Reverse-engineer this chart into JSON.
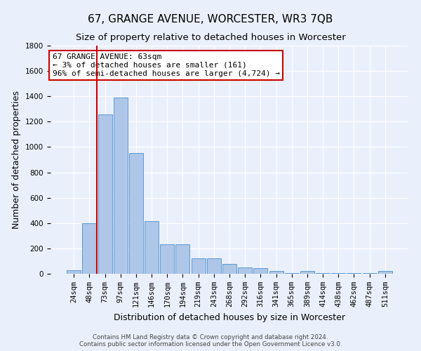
{
  "title": "67, GRANGE AVENUE, WORCESTER, WR3 7QB",
  "subtitle": "Size of property relative to detached houses in Worcester",
  "xlabel": "Distribution of detached houses by size in Worcester",
  "ylabel": "Number of detached properties",
  "bar_labels": [
    "24sqm",
    "48sqm",
    "73sqm",
    "97sqm",
    "121sqm",
    "146sqm",
    "170sqm",
    "194sqm",
    "219sqm",
    "243sqm",
    "268sqm",
    "292sqm",
    "316sqm",
    "341sqm",
    "365sqm",
    "389sqm",
    "414sqm",
    "438sqm",
    "462sqm",
    "487sqm",
    "511sqm"
  ],
  "bar_values": [
    30,
    400,
    1260,
    1390,
    950,
    415,
    235,
    235,
    120,
    120,
    75,
    50,
    45,
    20,
    5,
    20,
    5,
    5,
    5,
    5,
    20
  ],
  "bar_color": "#aec6e8",
  "bar_edge_color": "#5b9bd5",
  "background_color": "#eaf0fb",
  "grid_color": "#ffffff",
  "annotation_line1": "67 GRANGE AVENUE: 63sqm",
  "annotation_line2": "← 3% of detached houses are smaller (161)",
  "annotation_line3": "96% of semi-detached houses are larger (4,724) →",
  "annotation_box_color": "#ffffff",
  "annotation_box_edge": "#cc0000",
  "vline_x": 1.5,
  "vline_color": "#cc0000",
  "ylim": [
    0,
    1800
  ],
  "yticks": [
    0,
    200,
    400,
    600,
    800,
    1000,
    1200,
    1400,
    1600,
    1800
  ],
  "footnote": "Contains HM Land Registry data © Crown copyright and database right 2024.\nContains public sector information licensed under the Open Government Licence v3.0.",
  "title_fontsize": 11,
  "subtitle_fontsize": 9.5,
  "ylabel_fontsize": 9,
  "xlabel_fontsize": 9,
  "annot_fontsize": 8,
  "tick_fontsize": 7.5
}
